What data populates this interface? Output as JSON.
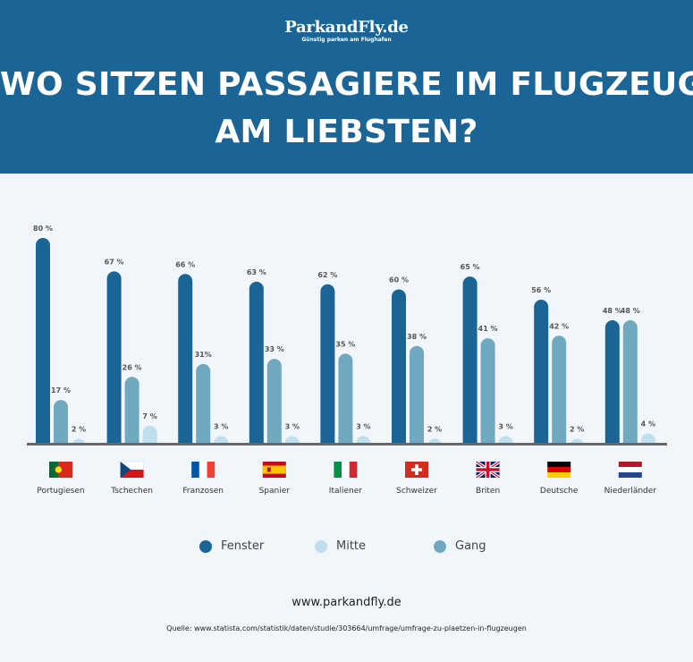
{
  "header": {
    "logo_main": "ParkandFly.de",
    "logo_sub": "Günstig parken am Flughafen",
    "title_line1": "WO SITZEN PASSAGIERE IM FLUGZEUG",
    "title_line2": "AM LIEBSTEN?"
  },
  "colors": {
    "header_bg": "#1a6596",
    "fenster": "#1a6596",
    "mitte": "#bfdfee",
    "gang": "#70a9bf"
  },
  "chart_data": {
    "type": "bar",
    "categories": [
      "Portugiesen",
      "Tschechen",
      "Franzosen",
      "Spanier",
      "Italiener",
      "Schweizer",
      "Briten",
      "Deutsche",
      "Niederländer"
    ],
    "flag_icons": [
      "portugal-flag-icon",
      "czech-flag-icon",
      "france-flag-icon",
      "spain-flag-icon",
      "italy-flag-icon",
      "switzerland-flag-icon",
      "uk-flag-icon",
      "germany-flag-icon",
      "netherlands-flag-icon"
    ],
    "series": [
      {
        "name": "Fenster",
        "values": [
          80,
          67,
          66,
          63,
          62,
          60,
          65,
          56,
          48
        ],
        "labels": [
          "80 %",
          "67 %",
          "66 %",
          "63 %",
          "62 %",
          "60 %",
          "65 %",
          "56 %",
          "48 %"
        ]
      },
      {
        "name": "Gang",
        "values": [
          17,
          26,
          31,
          33,
          35,
          38,
          41,
          42,
          48
        ],
        "labels": [
          "17 %",
          "26 %",
          "31%",
          "33 %",
          "35 %",
          "38 %",
          "41 %",
          "42 %",
          "48 %"
        ]
      },
      {
        "name": "Mitte",
        "values": [
          2,
          7,
          3,
          3,
          3,
          2,
          3,
          2,
          4
        ],
        "labels": [
          "2 %",
          "7 %",
          "3 %",
          "3 %",
          "3 %",
          "2 %",
          "3 %",
          "2 %",
          "4 %"
        ]
      }
    ],
    "ylim": [
      0,
      80
    ],
    "grid": false
  },
  "legend": {
    "items": [
      {
        "label": "Fenster",
        "color": "#1a6596"
      },
      {
        "label": "Mitte",
        "color": "#bfdfee"
      },
      {
        "label": "Gang",
        "color": "#70a9bf"
      }
    ]
  },
  "footer": {
    "website": "www.parkandfly.de",
    "source": "Quelle: www.statista.com/statistik/daten/studie/303664/umfrage/umfrage-zu-plaetzen-in-flugzeugen"
  }
}
